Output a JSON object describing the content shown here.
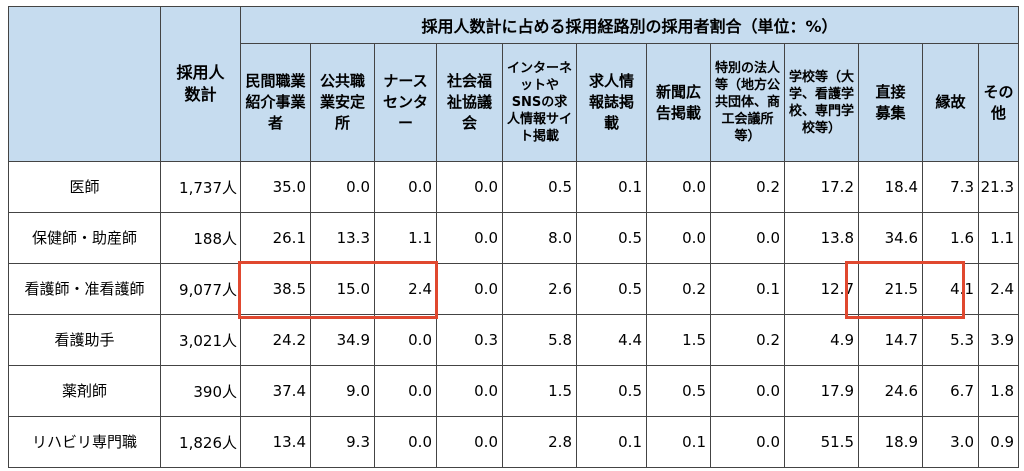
{
  "header": {
    "group_title": "採用人数計に占める採用経路別の採用者割合（単位：%）",
    "hires_total": "採用人数計",
    "channels": [
      "民間職業紹介事業者",
      "公共職業安定所",
      "ナースセンター",
      "社会福祉協議会",
      "インターネットやSNSの求人情報サイト掲載",
      "求人情報誌掲載",
      "新聞広告掲載",
      "特別の法人等（地方公共団体、商工会議所等）",
      "学校等（大学、看護学校、専門学校等）",
      "直接募集",
      "縁故",
      "その他"
    ]
  },
  "rows": [
    {
      "occupation": "医師",
      "hires": "1,737人",
      "values": [
        "35.0",
        "0.0",
        "0.0",
        "0.0",
        "0.5",
        "0.1",
        "0.0",
        "0.2",
        "17.2",
        "18.4",
        "7.3",
        "21.3"
      ]
    },
    {
      "occupation": "保健師・助産師",
      "hires": "188人",
      "values": [
        "26.1",
        "13.3",
        "1.1",
        "0.0",
        "8.0",
        "0.5",
        "0.0",
        "0.0",
        "13.8",
        "34.6",
        "1.6",
        "1.1"
      ]
    },
    {
      "occupation": "看護師・准看護師",
      "hires": "9,077人",
      "values": [
        "38.5",
        "15.0",
        "2.4",
        "0.0",
        "2.6",
        "0.5",
        "0.2",
        "0.1",
        "12.7",
        "21.5",
        "4.1",
        "2.4"
      ]
    },
    {
      "occupation": "看護助手",
      "hires": "3,021人",
      "values": [
        "24.2",
        "34.9",
        "0.0",
        "0.3",
        "5.8",
        "4.4",
        "1.5",
        "0.2",
        "4.9",
        "14.7",
        "5.3",
        "3.9"
      ]
    },
    {
      "occupation": "薬剤師",
      "hires": "390人",
      "values": [
        "37.4",
        "9.0",
        "0.0",
        "0.0",
        "1.5",
        "0.5",
        "0.5",
        "0.0",
        "17.9",
        "24.6",
        "6.7",
        "1.8"
      ]
    },
    {
      "occupation": "リハビリ専門職",
      "hires": "1,826人",
      "values": [
        "13.4",
        "9.3",
        "0.0",
        "0.0",
        "2.8",
        "0.1",
        "0.1",
        "0.0",
        "51.5",
        "18.9",
        "3.0",
        "0.9"
      ]
    }
  ],
  "colors": {
    "header_bg": "#c6dcef",
    "highlight": "#e0482f"
  }
}
